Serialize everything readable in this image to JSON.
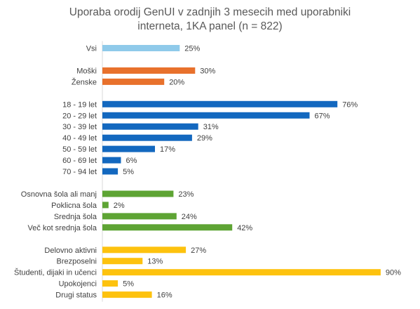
{
  "title_line1": "Uporaba orodij GenUI v zadnjih 3 mesecih med uporabniki",
  "title_line2": "interneta, 1KA panel (n = 822)",
  "chart_data": {
    "type": "bar",
    "orientation": "horizontal",
    "title": "Uporaba orodij GenUI v zadnjih 3 mesecih med uporabniki interneta, 1KA panel (n = 822)",
    "xlabel": "",
    "ylabel": "",
    "xlim": [
      0,
      100
    ],
    "grid": false,
    "legend": "none",
    "value_suffix": "%",
    "groups": [
      {
        "color": "#8FCAEA",
        "items": [
          {
            "label": "Vsi",
            "value": 25
          }
        ]
      },
      {
        "color": "#E8712C",
        "items": [
          {
            "label": "Moški",
            "value": 30
          },
          {
            "label": "Ženske",
            "value": 20
          }
        ]
      },
      {
        "color": "#1368BF",
        "items": [
          {
            "label": "18 - 19 let",
            "value": 76
          },
          {
            "label": "20 - 29 let",
            "value": 67
          },
          {
            "label": "30 - 39 let",
            "value": 31
          },
          {
            "label": "40 - 49 let",
            "value": 29
          },
          {
            "label": "50 - 59 let",
            "value": 17
          },
          {
            "label": "60 - 69 let",
            "value": 6
          },
          {
            "label": "70 - 94 let",
            "value": 5
          }
        ]
      },
      {
        "color": "#5EA434",
        "items": [
          {
            "label": "Osnovna šola ali manj",
            "value": 23
          },
          {
            "label": "Poklicna šola",
            "value": 2
          },
          {
            "label": "Srednja šola",
            "value": 24
          },
          {
            "label": "Več kot srednja šola",
            "value": 42
          }
        ]
      },
      {
        "color": "#FDC20E",
        "items": [
          {
            "label": "Delovno aktivni",
            "value": 27
          },
          {
            "label": "Brezposelni",
            "value": 13
          },
          {
            "label": "Študenti, dijaki in učenci",
            "value": 90
          },
          {
            "label": "Upokojenci",
            "value": 5
          },
          {
            "label": "Drugi status",
            "value": 16
          }
        ]
      }
    ]
  }
}
